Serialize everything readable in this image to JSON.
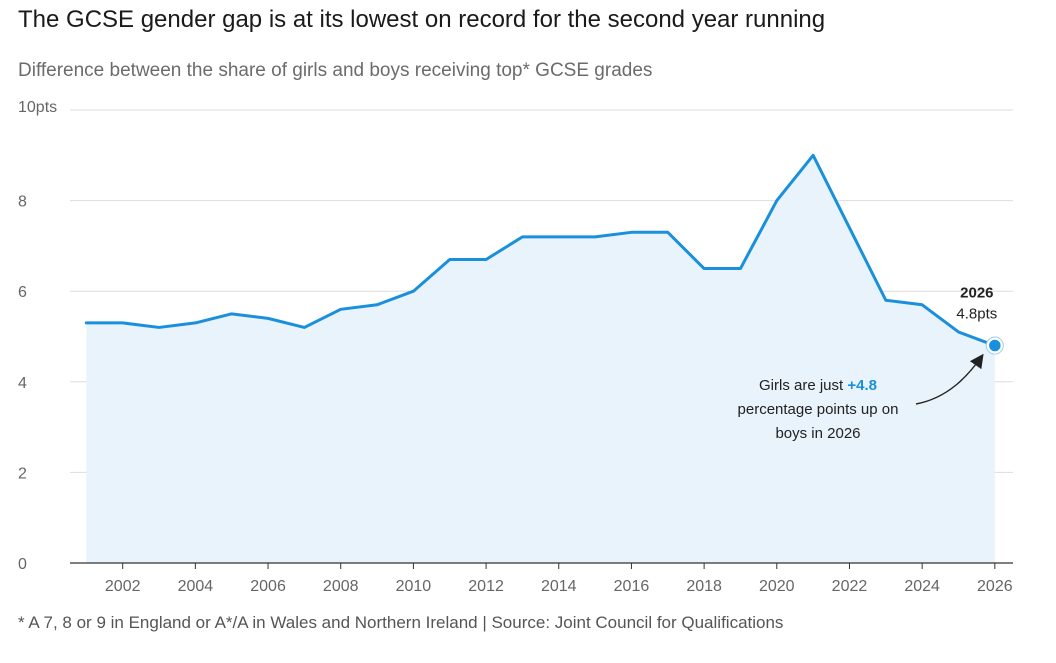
{
  "header": {
    "title": "The GCSE gender gap is at its lowest on record for the second year running",
    "subtitle": "Difference between the share of girls and boys receiving top* GCSE grades"
  },
  "footer": {
    "note": "* A 7, 8 or 9 in England or A*/A in Wales and Northern Ireland | Source: Joint Council for Qualifications"
  },
  "colors": {
    "line": "#1a8fdc",
    "fill": "#e8f3fc",
    "grid": "#dddddd",
    "axis": "#333333"
  },
  "chart_data": {
    "type": "line",
    "title": "The GCSE gender gap is at its lowest on record for the second year running",
    "subtitle": "Difference between the share of girls and boys receiving top* GCSE grades",
    "xlabel": "",
    "ylabel": "",
    "x": [
      2001,
      2002,
      2003,
      2004,
      2005,
      2006,
      2007,
      2008,
      2009,
      2010,
      2011,
      2012,
      2013,
      2014,
      2015,
      2016,
      2017,
      2018,
      2019,
      2020,
      2021,
      2022,
      2023,
      2024,
      2025,
      2026
    ],
    "series": [
      {
        "values": [
          5.3,
          5.3,
          5.2,
          5.3,
          5.5,
          5.4,
          5.2,
          5.6,
          5.7,
          6.0,
          6.7,
          6.7,
          7.2,
          7.2,
          7.2,
          7.3,
          7.3,
          6.5,
          6.5,
          8.0,
          9.0,
          7.4,
          5.8,
          5.7,
          5.1,
          4.8
        ]
      }
    ],
    "xlim": [
      2000.55,
      2026.5
    ],
    "ylim": [
      0,
      10
    ],
    "x_ticks": [
      2002,
      2004,
      2006,
      2008,
      2010,
      2012,
      2014,
      2016,
      2018,
      2020,
      2022,
      2024,
      2026
    ],
    "y_ticks": [
      {
        "value": 0,
        "label": "0"
      },
      {
        "value": 2,
        "label": "2"
      },
      {
        "value": 4,
        "label": "4"
      },
      {
        "value": 6,
        "label": "6"
      },
      {
        "value": 8,
        "label": "8"
      },
      {
        "value": 10,
        "label": "10pts"
      }
    ],
    "grid": true,
    "area_fill": true,
    "highlight": {
      "x": 2026,
      "y": 4.8,
      "year_label": "2026",
      "value_label": "4.8pts"
    },
    "annotation": {
      "prefix": "Girls are just ",
      "highlight": "+4.8",
      "line2": "percentage points up on",
      "line3": "boys in 2026"
    }
  }
}
